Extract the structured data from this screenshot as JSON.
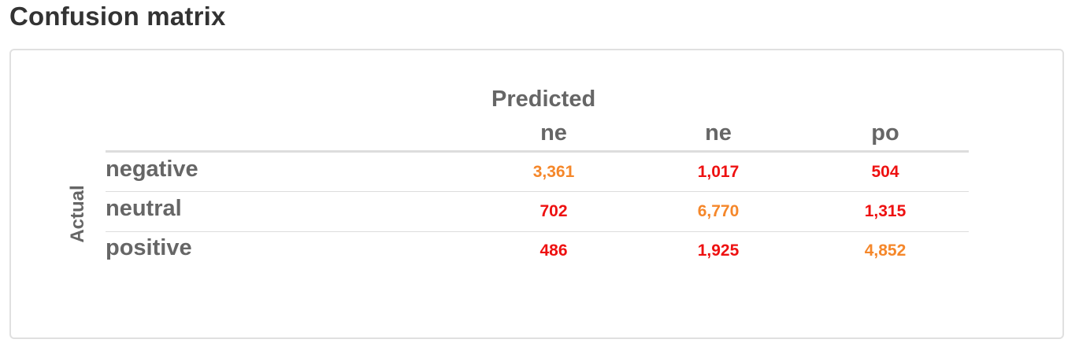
{
  "page": {
    "title": "Confusion matrix"
  },
  "chart_data": {
    "type": "table",
    "title": "",
    "col_axis_label": "Predicted",
    "row_axis_label": "Actual",
    "col_labels": [
      "ne",
      "ne",
      "po"
    ],
    "row_labels": [
      "negative",
      "neutral",
      "positive"
    ],
    "values": [
      [
        3361,
        1017,
        504
      ],
      [
        702,
        6770,
        1315
      ],
      [
        486,
        1925,
        4852
      ]
    ],
    "display_values": [
      [
        "3,361",
        "1,017",
        "504"
      ],
      [
        "702",
        "6,770",
        "1,315"
      ],
      [
        "486",
        "1,925",
        "4,852"
      ]
    ],
    "colors": {
      "diagonal": "#f5872a",
      "off_diagonal": "#ee1111",
      "label": "#666666",
      "title": "#333333"
    }
  }
}
